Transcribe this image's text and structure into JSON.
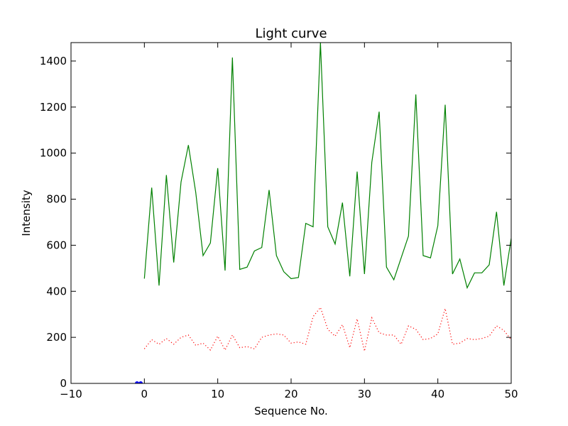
{
  "chart_data": {
    "type": "line",
    "title": "Light curve",
    "xlabel": "Sequence No.",
    "ylabel": "Intensity",
    "xlim": [
      -10,
      50
    ],
    "ylim": [
      0,
      1480
    ],
    "xticks": [
      -10,
      0,
      10,
      20,
      30,
      40,
      50
    ],
    "xtick_labels": [
      "−10",
      "0",
      "10",
      "20",
      "30",
      "40",
      "50"
    ],
    "yticks": [
      0,
      200,
      400,
      600,
      800,
      1000,
      1200,
      1400
    ],
    "ytick_labels": [
      "0",
      "200",
      "400",
      "600",
      "800",
      "1000",
      "1200",
      "1400"
    ],
    "grid": false,
    "legend": "none",
    "series": [
      {
        "style": "solid",
        "color": "#008000",
        "x": [
          0,
          1,
          2,
          3,
          4,
          5,
          6,
          7,
          8,
          9,
          10,
          11,
          12,
          13,
          14,
          15,
          16,
          17,
          18,
          19,
          20,
          21,
          22,
          23,
          24,
          25,
          26,
          27,
          28,
          29,
          30,
          31,
          32,
          33,
          34,
          35,
          36,
          37,
          38,
          39,
          40,
          41,
          42,
          43,
          44,
          45,
          46,
          47,
          48,
          49,
          50
        ],
        "y": [
          455,
          850,
          425,
          905,
          525,
          875,
          1035,
          830,
          555,
          610,
          935,
          490,
          1415,
          495,
          505,
          575,
          590,
          840,
          555,
          485,
          455,
          460,
          695,
          680,
          1480,
          680,
          605,
          785,
          465,
          920,
          475,
          960,
          1180,
          505,
          450,
          545,
          640,
          1255,
          555,
          545,
          685,
          1210,
          475,
          540,
          415,
          480,
          480,
          515,
          745,
          425,
          630
        ]
      },
      {
        "style": "dotted",
        "color": "#ff0000",
        "x": [
          0,
          1,
          2,
          3,
          4,
          5,
          6,
          7,
          8,
          9,
          10,
          11,
          12,
          13,
          14,
          15,
          16,
          17,
          18,
          19,
          20,
          21,
          22,
          23,
          24,
          25,
          26,
          27,
          28,
          29,
          30,
          31,
          32,
          33,
          34,
          35,
          36,
          37,
          38,
          39,
          40,
          41,
          42,
          43,
          44,
          45,
          46,
          47,
          48,
          49,
          50
        ],
        "y": [
          150,
          190,
          170,
          195,
          170,
          200,
          210,
          165,
          175,
          145,
          205,
          145,
          210,
          155,
          160,
          150,
          200,
          210,
          215,
          210,
          175,
          180,
          170,
          290,
          330,
          235,
          205,
          255,
          155,
          280,
          140,
          285,
          220,
          210,
          210,
          170,
          250,
          235,
          190,
          195,
          215,
          325,
          170,
          175,
          195,
          190,
          195,
          205,
          250,
          230,
          190
        ]
      },
      {
        "style": "points",
        "color": "#0000ff",
        "x": [
          -1,
          -0.5
        ],
        "y": [
          0,
          0
        ]
      }
    ]
  }
}
